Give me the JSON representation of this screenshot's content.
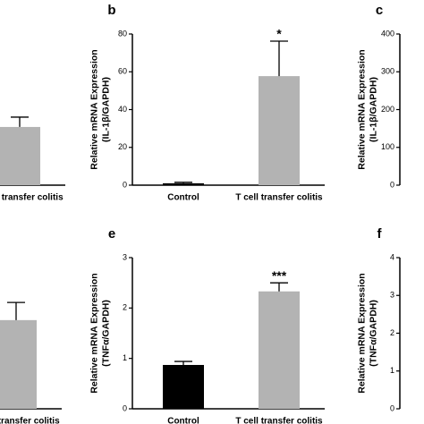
{
  "chart_data": [
    {
      "type": "bar",
      "categories": [
        "T cell transfer colitis"
      ],
      "values": [
        30.8
      ],
      "errors": [
        5.2
      ],
      "colors": [
        "#b3b3b3"
      ],
      "ylim": [
        0,
        80
      ]
    },
    {
      "type": "bar",
      "label": "b",
      "y_label": [
        "Relative mRNA Expression",
        "(IL-1β/GAPDH)"
      ],
      "categories": [
        "Control",
        "T cell transfer colitis"
      ],
      "values": [
        1,
        57.7
      ],
      "errors": [
        0.5,
        18.5
      ],
      "colors": [
        "#000000",
        "#b3b3b3"
      ],
      "significance": [
        null,
        "*"
      ],
      "ylim": [
        0,
        80
      ],
      "yticks": [
        0,
        20,
        40,
        60,
        80
      ]
    },
    {
      "type": "bar",
      "label": "c",
      "y_label": [
        "Relative mRNA Expression",
        "(IL-1β/GAPDH)"
      ],
      "ylim": [
        0,
        400
      ],
      "yticks": [
        0,
        100,
        200,
        300,
        400
      ]
    },
    {
      "type": "bar",
      "categories": [
        "T cell transfer colitis"
      ],
      "values": [
        1.76
      ],
      "errors": [
        0.35
      ],
      "colors": [
        "#b3b3b3"
      ],
      "ylim": [
        0,
        3
      ]
    },
    {
      "type": "bar",
      "label": "e",
      "y_label": [
        "Relative mRNA Expression",
        "(TNFα/GAPDH)"
      ],
      "categories": [
        "Control",
        "T cell transfer colitis"
      ],
      "values": [
        0.87,
        2.33
      ],
      "errors": [
        0.07,
        0.17
      ],
      "colors": [
        "#000000",
        "#b3b3b3"
      ],
      "significance": [
        null,
        "***"
      ],
      "ylim": [
        0,
        3
      ],
      "yticks": [
        0,
        1,
        2,
        3
      ]
    },
    {
      "type": "bar",
      "label": "f",
      "y_label": [
        "Relative mRNA Expression",
        "(TNFα/GAPDH)"
      ],
      "ylim": [
        0,
        4
      ],
      "yticks": [
        0,
        1,
        2,
        3,
        4
      ]
    }
  ]
}
